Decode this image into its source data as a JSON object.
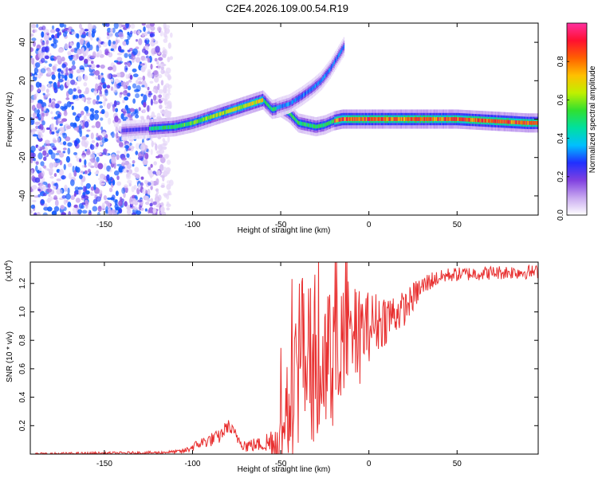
{
  "figure": {
    "title": "C2E4.2026.109.00.54.R19"
  },
  "chart_data": [
    {
      "type": "heatmap",
      "title": "C2E4.2026.109.00.54.R19",
      "xlabel": "Height of straight line (km)",
      "ylabel": "Frequency (Hz)",
      "xlim": [
        -192,
        96
      ],
      "ylim": [
        -50,
        50
      ],
      "xticks": [
        -150,
        -100,
        -50,
        0,
        50
      ],
      "yticks": [
        -40,
        -20,
        0,
        20,
        40
      ],
      "colorbar": {
        "label": "Normalized spectral amplitude",
        "range": [
          0,
          1
        ],
        "ticks": [
          "0.0",
          "0.2",
          "0.4",
          "0.6",
          "0.8"
        ],
        "colormap": "rainbow",
        "colors": [
          "#ffffff",
          "#c8a8f0",
          "#8040e0",
          "#2030ff",
          "#00c0ff",
          "#00e0a0",
          "#30e030",
          "#c0f000",
          "#ffc000",
          "#ff6000",
          "#ff1030",
          "#ff30a0"
        ]
      },
      "traces": [
        {
          "name": "main-frequency-track",
          "points": [
            [
              -140,
              -6
            ],
            [
              -125,
              -5
            ],
            [
              -110,
              -4
            ],
            [
              -100,
              -2
            ],
            [
              -90,
              1
            ],
            [
              -80,
              4
            ],
            [
              -70,
              7
            ],
            [
              -60,
              10
            ],
            [
              -55,
              5
            ],
            [
              -50,
              6
            ],
            [
              -45,
              3
            ],
            [
              -40,
              -2
            ],
            [
              -35,
              -3
            ],
            [
              -30,
              -4
            ],
            [
              -25,
              -3
            ],
            [
              -20,
              -1
            ],
            [
              -15,
              0
            ],
            [
              -5,
              0
            ],
            [
              10,
              0
            ],
            [
              30,
              0
            ],
            [
              50,
              0
            ],
            [
              70,
              -1
            ],
            [
              90,
              -2
            ],
            [
              96,
              -2
            ]
          ],
          "peak": 0.9
        },
        {
          "name": "upper-branch",
          "points": [
            [
              -52,
              6
            ],
            [
              -45,
              8
            ],
            [
              -38,
              12
            ],
            [
              -32,
              16
            ],
            [
              -27,
              20
            ],
            [
              -22,
              26
            ],
            [
              -18,
              32
            ],
            [
              -14,
              38
            ]
          ],
          "peak": 0.35
        }
      ],
      "noise_region": {
        "x_range": [
          -192,
          -120
        ],
        "level": 0.25
      }
    },
    {
      "type": "line",
      "xlabel": "Height of straight line (km)",
      "ylabel": "SNR (10 * v/v)",
      "y_multiplier": "(x10⁴)",
      "y_multiplier_base": "(x10",
      "y_multiplier_exp": "4",
      "y_multiplier_close": ")",
      "xlim": [
        -192,
        96
      ],
      "ylim": [
        0,
        1.35
      ],
      "xticks": [
        -150,
        -100,
        -50,
        0,
        50
      ],
      "yticks": [
        0.2,
        0.4,
        0.6,
        0.8,
        1.0,
        1.2
      ],
      "ytick_labels": [
        "0.2",
        "0.4",
        "0.6",
        "0.8",
        "1.0",
        "1.2"
      ],
      "color": "#e83030",
      "series": [
        {
          "name": "SNR",
          "keypoints": [
            [
              -192,
              0.0
            ],
            [
              -120,
              0.01
            ],
            [
              -105,
              0.02
            ],
            [
              -100,
              0.05
            ],
            [
              -95,
              0.08
            ],
            [
              -90,
              0.1
            ],
            [
              -85,
              0.12
            ],
            [
              -80,
              0.2
            ],
            [
              -75,
              0.12
            ],
            [
              -70,
              0.06
            ],
            [
              -60,
              0.07
            ],
            [
              -55,
              0.08
            ],
            [
              -50,
              0.1
            ],
            [
              -45,
              0.35
            ],
            [
              -40,
              0.6
            ],
            [
              -35,
              0.7
            ],
            [
              -30,
              0.55
            ],
            [
              -25,
              0.6
            ],
            [
              -20,
              0.7
            ],
            [
              -15,
              0.72
            ],
            [
              -10,
              0.8
            ],
            [
              -5,
              0.85
            ],
            [
              0,
              0.9
            ],
            [
              5,
              0.93
            ],
            [
              10,
              0.96
            ],
            [
              20,
              1.02
            ],
            [
              28,
              1.15
            ],
            [
              35,
              1.22
            ],
            [
              45,
              1.26
            ],
            [
              60,
              1.27
            ],
            [
              80,
              1.28
            ],
            [
              96,
              1.28
            ]
          ],
          "noise_envelope": [
            [
              -192,
              0.01
            ],
            [
              -110,
              0.01
            ],
            [
              -90,
              0.05
            ],
            [
              -60,
              0.05
            ],
            [
              -50,
              0.25
            ],
            [
              -40,
              0.55
            ],
            [
              -20,
              0.5
            ],
            [
              0,
              0.25
            ],
            [
              20,
              0.12
            ],
            [
              40,
              0.05
            ],
            [
              96,
              0.05
            ]
          ]
        }
      ]
    }
  ]
}
